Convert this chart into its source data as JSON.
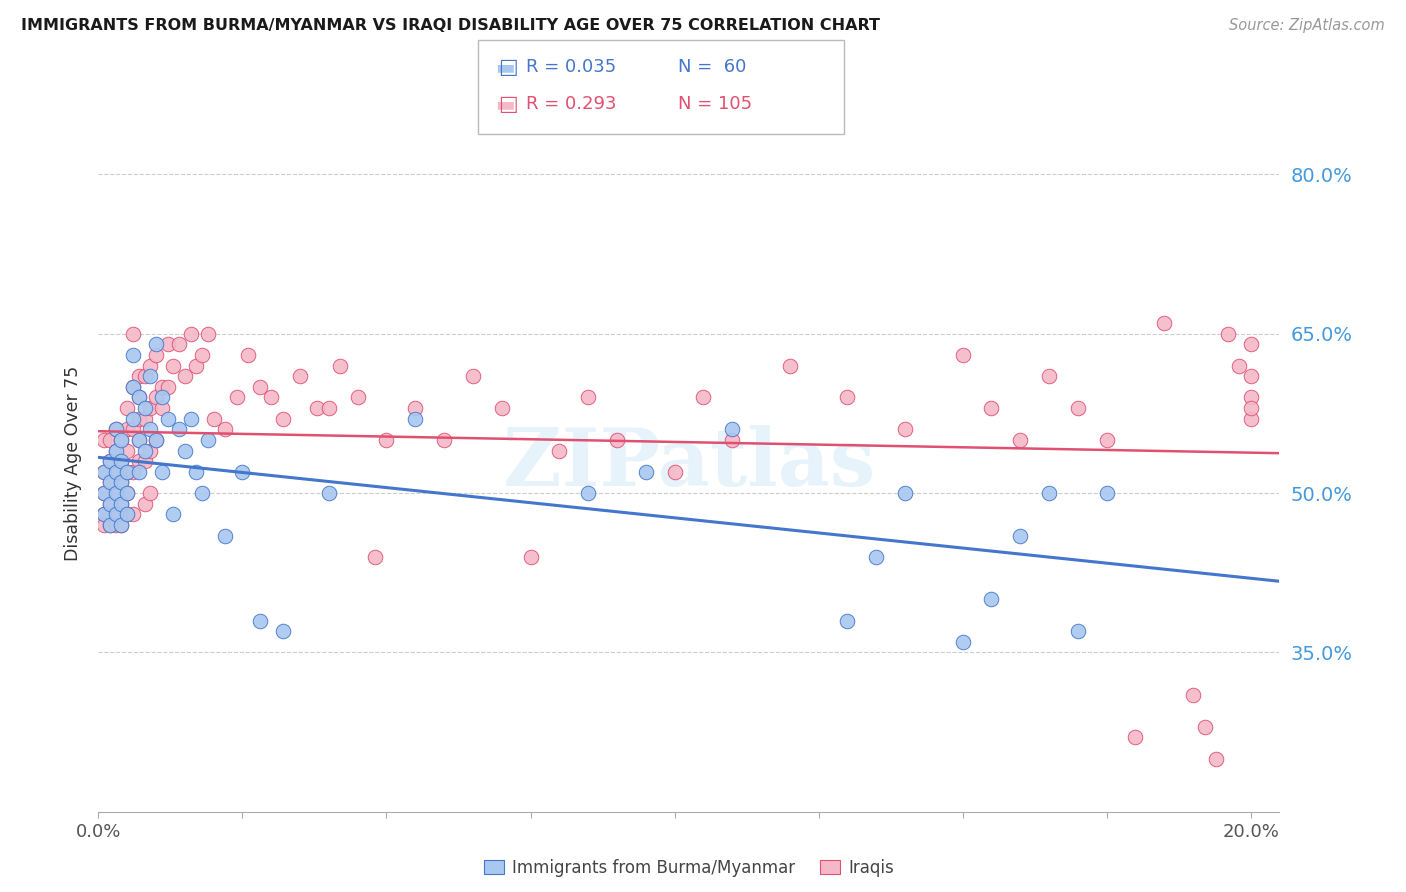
{
  "title": "IMMIGRANTS FROM BURMA/MYANMAR VS IRAQI DISABILITY AGE OVER 75 CORRELATION CHART",
  "source": "Source: ZipAtlas.com",
  "ylabel": "Disability Age Over 75",
  "y_tick_labels": [
    "80.0%",
    "65.0%",
    "50.0%",
    "35.0%"
  ],
  "y_tick_values": [
    0.8,
    0.65,
    0.5,
    0.35
  ],
  "x_range": [
    0.0,
    0.205
  ],
  "y_range": [
    0.2,
    0.855
  ],
  "legend_burma_R": "R = 0.035",
  "legend_burma_N": "N =  60",
  "legend_iraqi_R": "R = 0.293",
  "legend_iraqi_N": "N = 105",
  "color_burma_fill": "#a8c8f0",
  "color_iraqi_fill": "#f5b8c8",
  "color_burma_line": "#4477cc",
  "color_iraqi_line": "#e05070",
  "color_axis": "#4499dd",
  "watermark": "ZIPatlas",
  "burma_x": [
    0.001,
    0.001,
    0.001,
    0.002,
    0.002,
    0.002,
    0.002,
    0.003,
    0.003,
    0.003,
    0.003,
    0.003,
    0.004,
    0.004,
    0.004,
    0.004,
    0.004,
    0.005,
    0.005,
    0.005,
    0.006,
    0.006,
    0.006,
    0.007,
    0.007,
    0.007,
    0.008,
    0.008,
    0.009,
    0.009,
    0.01,
    0.01,
    0.011,
    0.011,
    0.012,
    0.013,
    0.014,
    0.015,
    0.016,
    0.017,
    0.018,
    0.019,
    0.022,
    0.025,
    0.028,
    0.032,
    0.04,
    0.055,
    0.085,
    0.095,
    0.11,
    0.13,
    0.135,
    0.14,
    0.15,
    0.155,
    0.16,
    0.165,
    0.17,
    0.175
  ],
  "burma_y": [
    0.5,
    0.52,
    0.48,
    0.53,
    0.51,
    0.49,
    0.47,
    0.54,
    0.5,
    0.52,
    0.48,
    0.56,
    0.55,
    0.51,
    0.53,
    0.49,
    0.47,
    0.5,
    0.52,
    0.48,
    0.6,
    0.57,
    0.63,
    0.59,
    0.55,
    0.52,
    0.58,
    0.54,
    0.61,
    0.56,
    0.64,
    0.55,
    0.59,
    0.52,
    0.57,
    0.48,
    0.56,
    0.54,
    0.57,
    0.52,
    0.5,
    0.55,
    0.46,
    0.52,
    0.38,
    0.37,
    0.5,
    0.57,
    0.5,
    0.52,
    0.56,
    0.38,
    0.44,
    0.5,
    0.36,
    0.4,
    0.46,
    0.5,
    0.37,
    0.5
  ],
  "iraqi_x": [
    0.001,
    0.001,
    0.001,
    0.001,
    0.001,
    0.002,
    0.002,
    0.002,
    0.002,
    0.002,
    0.003,
    0.003,
    0.003,
    0.003,
    0.003,
    0.003,
    0.004,
    0.004,
    0.004,
    0.004,
    0.004,
    0.005,
    0.005,
    0.005,
    0.005,
    0.005,
    0.005,
    0.006,
    0.006,
    0.006,
    0.006,
    0.006,
    0.007,
    0.007,
    0.007,
    0.007,
    0.007,
    0.008,
    0.008,
    0.008,
    0.008,
    0.009,
    0.009,
    0.009,
    0.009,
    0.01,
    0.01,
    0.01,
    0.011,
    0.011,
    0.012,
    0.012,
    0.013,
    0.014,
    0.015,
    0.016,
    0.017,
    0.018,
    0.019,
    0.02,
    0.022,
    0.024,
    0.026,
    0.028,
    0.03,
    0.032,
    0.035,
    0.038,
    0.04,
    0.042,
    0.045,
    0.048,
    0.05,
    0.055,
    0.06,
    0.065,
    0.07,
    0.075,
    0.08,
    0.085,
    0.09,
    0.1,
    0.105,
    0.11,
    0.12,
    0.13,
    0.14,
    0.15,
    0.155,
    0.16,
    0.165,
    0.17,
    0.175,
    0.18,
    0.185,
    0.19,
    0.192,
    0.194,
    0.196,
    0.198,
    0.2,
    0.2,
    0.2,
    0.2,
    0.2
  ],
  "iraqi_y": [
    0.5,
    0.52,
    0.48,
    0.55,
    0.47,
    0.51,
    0.53,
    0.49,
    0.55,
    0.47,
    0.56,
    0.52,
    0.48,
    0.5,
    0.54,
    0.47,
    0.53,
    0.51,
    0.55,
    0.49,
    0.47,
    0.58,
    0.54,
    0.52,
    0.5,
    0.56,
    0.48,
    0.6,
    0.56,
    0.52,
    0.65,
    0.48,
    0.59,
    0.55,
    0.57,
    0.53,
    0.61,
    0.61,
    0.57,
    0.53,
    0.49,
    0.62,
    0.58,
    0.54,
    0.5,
    0.63,
    0.59,
    0.55,
    0.6,
    0.58,
    0.64,
    0.6,
    0.62,
    0.64,
    0.61,
    0.65,
    0.62,
    0.63,
    0.65,
    0.57,
    0.56,
    0.59,
    0.63,
    0.6,
    0.59,
    0.57,
    0.61,
    0.58,
    0.58,
    0.62,
    0.59,
    0.44,
    0.55,
    0.58,
    0.55,
    0.61,
    0.58,
    0.44,
    0.54,
    0.59,
    0.55,
    0.52,
    0.59,
    0.55,
    0.62,
    0.59,
    0.56,
    0.63,
    0.58,
    0.55,
    0.61,
    0.58,
    0.55,
    0.27,
    0.66,
    0.31,
    0.28,
    0.25,
    0.65,
    0.62,
    0.59,
    0.57,
    0.64,
    0.61,
    0.58
  ]
}
